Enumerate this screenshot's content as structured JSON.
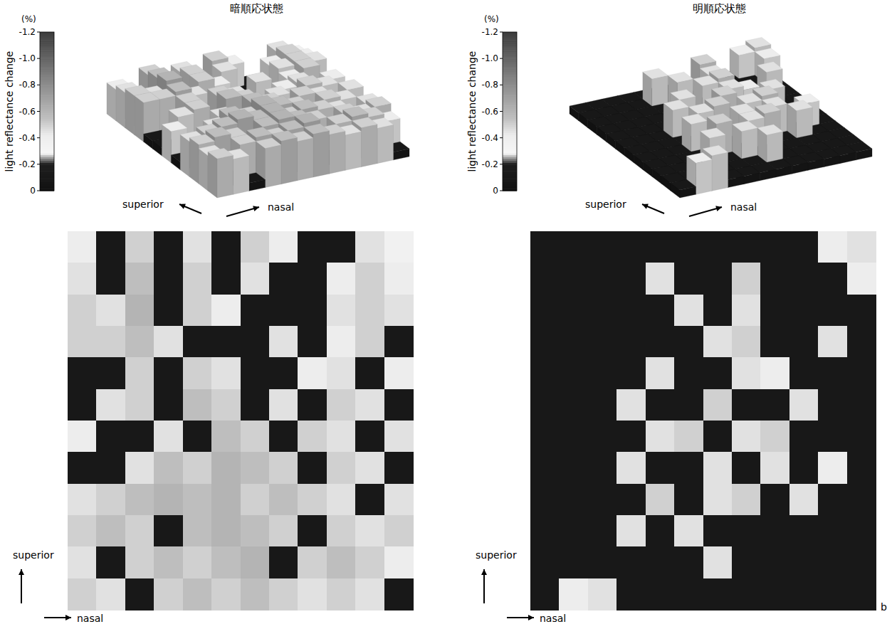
{
  "chart_data": [
    {
      "type": "heatmap",
      "title": "暗順応状態",
      "x_label": "nasal",
      "y_label": "superior",
      "colorbar": {
        "label": "light reflectance change",
        "unit": "(%)",
        "range": [
          -1.2,
          0
        ],
        "ticks": [
          -1.2,
          {
            "value": -1,
            "label": "-1.0"
          },
          -0.8,
          -0.6,
          -0.4,
          -0.2,
          0
        ]
      },
      "cells": [
        [
          -0.4,
          -0.1,
          -0.5,
          -0.1,
          -0.45,
          -0.1,
          -0.5,
          -0.4,
          -0.1,
          -0.1,
          -0.45,
          -0.35
        ],
        [
          -0.45,
          -0.1,
          -0.55,
          -0.1,
          -0.5,
          -0.1,
          -0.45,
          -0.1,
          -0.1,
          -0.4,
          -0.5,
          -0.4
        ],
        [
          -0.5,
          -0.45,
          -0.6,
          -0.1,
          -0.5,
          -0.4,
          -0.1,
          -0.1,
          -0.1,
          -0.45,
          -0.5,
          -0.45
        ],
        [
          -0.5,
          -0.5,
          -0.55,
          -0.45,
          -0.1,
          -0.1,
          -0.1,
          -0.45,
          -0.1,
          -0.4,
          -0.5,
          -0.1
        ],
        [
          -0.1,
          -0.1,
          -0.5,
          -0.1,
          -0.5,
          -0.45,
          -0.1,
          -0.1,
          -0.4,
          -0.45,
          -0.1,
          -0.4
        ],
        [
          -0.1,
          -0.45,
          -0.5,
          -0.1,
          -0.55,
          -0.5,
          -0.1,
          -0.45,
          -0.1,
          -0.5,
          -0.45,
          -0.1
        ],
        [
          -0.4,
          -0.1,
          -0.1,
          -0.45,
          -0.1,
          -0.55,
          -0.5,
          -0.1,
          -0.5,
          -0.45,
          -0.1,
          -0.45
        ],
        [
          -0.1,
          -0.1,
          -0.45,
          -0.55,
          -0.5,
          -0.6,
          -0.55,
          -0.5,
          -0.1,
          -0.5,
          -0.45,
          -0.1
        ],
        [
          -0.45,
          -0.5,
          -0.55,
          -0.6,
          -0.55,
          -0.6,
          -0.5,
          -0.55,
          -0.5,
          -0.45,
          -0.1,
          -0.45
        ],
        [
          -0.5,
          -0.55,
          -0.5,
          -0.1,
          -0.55,
          -0.6,
          -0.55,
          -0.5,
          -0.1,
          -0.5,
          -0.45,
          -0.5
        ],
        [
          -0.45,
          -0.1,
          -0.5,
          -0.55,
          -0.5,
          -0.55,
          -0.6,
          -0.1,
          -0.5,
          -0.55,
          -0.5,
          -0.4
        ],
        [
          -0.5,
          -0.45,
          -0.1,
          -0.5,
          -0.55,
          -0.5,
          -0.55,
          -0.5,
          -0.45,
          -0.5,
          -0.45,
          -0.1
        ]
      ]
    },
    {
      "type": "heatmap",
      "title": "明順応状態",
      "x_label": "nasal",
      "y_label": "superior",
      "panel": "b",
      "colorbar": {
        "label": "light reflectance change",
        "unit": "(%)",
        "range": [
          -1.2,
          0
        ],
        "ticks": [
          -1.2,
          {
            "value": -1,
            "label": "-1.0"
          },
          -0.8,
          -0.6,
          -0.4,
          -0.2,
          0
        ]
      },
      "cells": [
        [
          -0.1,
          -0.1,
          -0.1,
          -0.1,
          -0.1,
          -0.1,
          -0.1,
          -0.1,
          -0.1,
          -0.1,
          -0.4,
          -0.45
        ],
        [
          -0.1,
          -0.1,
          -0.1,
          -0.1,
          -0.45,
          -0.1,
          -0.1,
          -0.5,
          -0.1,
          -0.1,
          -0.1,
          -0.4
        ],
        [
          -0.1,
          -0.1,
          -0.1,
          -0.1,
          -0.1,
          -0.45,
          -0.1,
          -0.45,
          -0.1,
          -0.1,
          -0.1,
          -0.1
        ],
        [
          -0.1,
          -0.1,
          -0.1,
          -0.1,
          -0.1,
          -0.1,
          -0.45,
          -0.5,
          -0.1,
          -0.1,
          -0.45,
          -0.1
        ],
        [
          -0.1,
          -0.1,
          -0.1,
          -0.1,
          -0.45,
          -0.1,
          -0.1,
          -0.45,
          -0.4,
          -0.1,
          -0.1,
          -0.1
        ],
        [
          -0.1,
          -0.1,
          -0.1,
          -0.45,
          -0.1,
          -0.1,
          -0.5,
          -0.1,
          -0.1,
          -0.45,
          -0.1,
          -0.1
        ],
        [
          -0.1,
          -0.1,
          -0.1,
          -0.1,
          -0.45,
          -0.5,
          -0.1,
          -0.45,
          -0.5,
          -0.1,
          -0.1,
          -0.1
        ],
        [
          -0.1,
          -0.1,
          -0.1,
          -0.45,
          -0.1,
          -0.1,
          -0.45,
          -0.1,
          -0.45,
          -0.1,
          -0.4,
          -0.1
        ],
        [
          -0.1,
          -0.1,
          -0.1,
          -0.1,
          -0.5,
          -0.1,
          -0.45,
          -0.5,
          -0.1,
          -0.45,
          -0.1,
          -0.1
        ],
        [
          -0.1,
          -0.1,
          -0.1,
          -0.45,
          -0.1,
          -0.45,
          -0.1,
          -0.1,
          -0.1,
          -0.1,
          -0.1,
          -0.1
        ],
        [
          -0.1,
          -0.1,
          -0.1,
          -0.1,
          -0.1,
          -0.1,
          -0.45,
          -0.1,
          -0.1,
          -0.1,
          -0.1,
          -0.1
        ],
        [
          -0.1,
          -0.4,
          -0.45,
          -0.1,
          -0.1,
          -0.1,
          -0.1,
          -0.1,
          -0.1,
          -0.1,
          -0.1,
          -0.1
        ]
      ]
    }
  ]
}
